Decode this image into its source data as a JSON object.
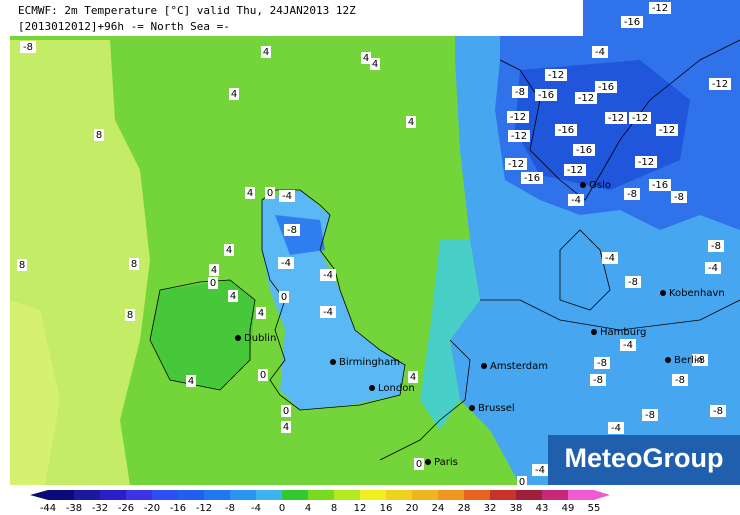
{
  "header": {
    "title": "ECMWF: 2m Temperature [°C] valid Thu, 24JAN2013 12Z",
    "subtitle": "[2013012012]+96h -= North Sea =-"
  },
  "cities": [
    "Oslo",
    "Kobenhavn",
    "Hamburg",
    "Berlin",
    "Amsterdam",
    "Brussel",
    "Paris",
    "London",
    "Birmingham",
    "Dublin"
  ],
  "contour_labels": [
    -8,
    4,
    4,
    4,
    4,
    4,
    8,
    4,
    0,
    -4,
    -8,
    4,
    -4,
    4,
    8,
    8,
    0,
    4,
    0,
    -4,
    -4,
    8,
    4,
    4,
    0,
    4,
    0,
    4,
    0,
    -12,
    -16,
    -4,
    -12,
    -16,
    -12,
    -16,
    -12,
    -16,
    -12,
    -16,
    -12,
    -4,
    -8,
    -12,
    -16,
    -8,
    -12,
    -12,
    -8,
    -4,
    -4,
    -8,
    -4,
    -8,
    -8,
    -8,
    -8,
    -8,
    -8,
    -4,
    -4,
    0,
    -12,
    -16,
    -12,
    -12,
    -8
  ],
  "color_scale": {
    "labels": [
      -44,
      -38,
      -32,
      -26,
      -20,
      -16,
      -12,
      -8,
      -4,
      0,
      4,
      8,
      12,
      16,
      20,
      24,
      28,
      32,
      38,
      43,
      49,
      55
    ],
    "colors": [
      "#0a0a7a",
      "#1a1aa0",
      "#2a1ec8",
      "#3c32e6",
      "#2d4df5",
      "#2060f0",
      "#1e78f0",
      "#2896f0",
      "#3cb4f0",
      "#32c832",
      "#78dc1e",
      "#b4eb1e",
      "#f0f01e",
      "#f0d21e",
      "#f0b41e",
      "#f0961e",
      "#e6641e",
      "#c83228",
      "#a01e3c",
      "#c8287a",
      "#f05ad2"
    ]
  },
  "logo": "MeteoGroup"
}
